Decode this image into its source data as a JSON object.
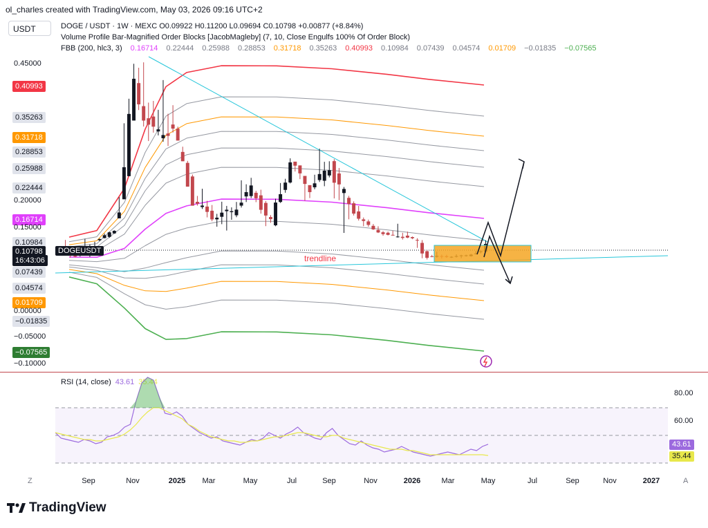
{
  "header": {
    "attribution": "ol_charles created with TradingView.com, May 03, 2026 09:16 UTC+2"
  },
  "currency_button": "USDT",
  "legend": {
    "symbol_line": "DOGE / USDT · 1W · MEXC  O0.09922  H0.11200  L0.09694  C0.10798  +0.00877 (+8.84%)",
    "indicator1": "Volume Profile Bar-Magnified Order Blocks [JacobMagleby] (7, 10, Close Engulfs 100% Of Order Block)",
    "fbb_title": "FBB (200, hlc3, 3)",
    "fbb_values": [
      {
        "text": "0.16714",
        "color": "#e040fb"
      },
      {
        "text": "0.22444",
        "color": "#787b86"
      },
      {
        "text": "0.25988",
        "color": "#787b86"
      },
      {
        "text": "0.28853",
        "color": "#787b86"
      },
      {
        "text": "0.31718",
        "color": "#ff9800"
      },
      {
        "text": "0.35263",
        "color": "#787b86"
      },
      {
        "text": "0.40993",
        "color": "#f23645"
      },
      {
        "text": "0.10984",
        "color": "#787b86"
      },
      {
        "text": "0.07439",
        "color": "#787b86"
      },
      {
        "text": "0.04574",
        "color": "#787b86"
      },
      {
        "text": "0.01709",
        "color": "#ff9800"
      },
      {
        "text": "−0.01835",
        "color": "#787b86"
      },
      {
        "text": "−0.07565",
        "color": "#4caf50"
      }
    ]
  },
  "price_tags": [
    {
      "text": "0.40993",
      "bg": "#f23645",
      "fg": "#ffffff"
    },
    {
      "text": "0.35263",
      "bg": "#e0e3eb",
      "fg": "#131722"
    },
    {
      "text": "0.31718",
      "bg": "#ff9800",
      "fg": "#ffffff"
    },
    {
      "text": "0.28853",
      "bg": "#e0e3eb",
      "fg": "#131722"
    },
    {
      "text": "0.25988",
      "bg": "#e0e3eb",
      "fg": "#131722"
    },
    {
      "text": "0.22444",
      "bg": "#e0e3eb",
      "fg": "#131722"
    },
    {
      "text": "0.16714",
      "bg": "#e040fb",
      "fg": "#ffffff"
    },
    {
      "text": "0.10984",
      "bg": "#e0e3eb",
      "fg": "#131722"
    },
    {
      "text": "0.10798",
      "bg": "#131722",
      "fg": "#ffffff"
    },
    {
      "text": "16:43:06",
      "bg": "#131722",
      "fg": "#ffffff"
    },
    {
      "text": "0.07439",
      "bg": "#e0e3eb",
      "fg": "#131722"
    },
    {
      "text": "0.04574",
      "bg": "#e0e3eb",
      "fg": "#131722"
    },
    {
      "text": "0.01709",
      "bg": "#ff9800",
      "fg": "#ffffff"
    },
    {
      "text": "−0.01835",
      "bg": "#e0e3eb",
      "fg": "#131722"
    },
    {
      "text": "−0.07565",
      "bg": "#2e7d32",
      "fg": "#ffffff"
    }
  ],
  "price_axis_labels": [
    "0.45000",
    "0.20000",
    "0.15000",
    "0.00000",
    "−0.05000",
    "−0.10000"
  ],
  "symbol_tag": "DOGEUSDT",
  "trendline_label": "trendline",
  "rsi": {
    "title": "RSI (14, close)",
    "value1": "43.61",
    "value2": "35.44",
    "axis_labels": [
      "80.00",
      "60.00"
    ],
    "tag1": "43.61",
    "tag2": "35.44"
  },
  "time_axis": [
    {
      "text": "Sep",
      "bold": false
    },
    {
      "text": "Nov",
      "bold": false
    },
    {
      "text": "2025",
      "bold": true
    },
    {
      "text": "Mar",
      "bold": false
    },
    {
      "text": "May",
      "bold": false
    },
    {
      "text": "Jul",
      "bold": false
    },
    {
      "text": "Sep",
      "bold": false
    },
    {
      "text": "Nov",
      "bold": false
    },
    {
      "text": "2026",
      "bold": true
    },
    {
      "text": "Mar",
      "bold": false
    },
    {
      "text": "May",
      "bold": false
    },
    {
      "text": "Jul",
      "bold": false
    },
    {
      "text": "Sep",
      "bold": false
    },
    {
      "text": "Nov",
      "bold": false
    },
    {
      "text": "2027",
      "bold": true
    }
  ],
  "corner_left": "Z",
  "corner_right": "A",
  "brand": "TradingView",
  "colors": {
    "up_candle": "#131722",
    "down_candle": "#c2474d",
    "trendline": "#26c6da",
    "upper_band": "#f23645",
    "middle_band": "#e040fb",
    "lower_band": "#4caf50",
    "orange_band": "#ff9800",
    "grey_band": "#9598a1",
    "rsi_line": "#9c6ade",
    "rsi_ma": "#e8e84b",
    "order_block": "#f5a623"
  },
  "chart_data": {
    "type": "candlestick",
    "title": "DOGE / USDT · 1W · MEXC",
    "timeframe": "1W",
    "last_close": 0.10798,
    "candles_approx": [
      {
        "t": "2024-08",
        "o": 0.105,
        "h": 0.112,
        "l": 0.095,
        "c": 0.098
      },
      {
        "t": "2024-09",
        "o": 0.098,
        "h": 0.118,
        "l": 0.093,
        "c": 0.108
      },
      {
        "t": "2024-10",
        "o": 0.108,
        "h": 0.145,
        "l": 0.105,
        "c": 0.14
      },
      {
        "t": "2024-11",
        "o": 0.14,
        "h": 0.48,
        "l": 0.14,
        "c": 0.4
      },
      {
        "t": "2024-12",
        "o": 0.4,
        "h": 0.482,
        "l": 0.29,
        "c": 0.32
      },
      {
        "t": "2025-01",
        "o": 0.32,
        "h": 0.43,
        "l": 0.3,
        "c": 0.33
      },
      {
        "t": "2025-02",
        "o": 0.33,
        "h": 0.34,
        "l": 0.2,
        "c": 0.2
      },
      {
        "t": "2025-03",
        "o": 0.2,
        "h": 0.23,
        "l": 0.16,
        "c": 0.17
      },
      {
        "t": "2025-04",
        "o": 0.17,
        "h": 0.2,
        "l": 0.13,
        "c": 0.18
      },
      {
        "t": "2025-05",
        "o": 0.18,
        "h": 0.26,
        "l": 0.17,
        "c": 0.22
      },
      {
        "t": "2025-06",
        "o": 0.22,
        "h": 0.23,
        "l": 0.14,
        "c": 0.16
      },
      {
        "t": "2025-07",
        "o": 0.16,
        "h": 0.29,
        "l": 0.155,
        "c": 0.27
      },
      {
        "t": "2025-08",
        "o": 0.27,
        "h": 0.26,
        "l": 0.19,
        "c": 0.22
      },
      {
        "t": "2025-09",
        "o": 0.22,
        "h": 0.305,
        "l": 0.21,
        "c": 0.26
      },
      {
        "t": "2025-10",
        "o": 0.26,
        "h": 0.27,
        "l": 0.11,
        "c": 0.19
      },
      {
        "t": "2025-11",
        "o": 0.19,
        "h": 0.2,
        "l": 0.14,
        "c": 0.15
      },
      {
        "t": "2025-12",
        "o": 0.15,
        "h": 0.16,
        "l": 0.12,
        "c": 0.125
      },
      {
        "t": "2026-01",
        "o": 0.125,
        "h": 0.16,
        "l": 0.115,
        "c": 0.12
      },
      {
        "t": "2026-02",
        "o": 0.12,
        "h": 0.125,
        "l": 0.09,
        "c": 0.098
      },
      {
        "t": "2026-03",
        "o": 0.098,
        "h": 0.105,
        "l": 0.093,
        "c": 0.097
      },
      {
        "t": "2026-04",
        "o": 0.097,
        "h": 0.102,
        "l": 0.093,
        "c": 0.099
      },
      {
        "t": "2026-05",
        "o": 0.09922,
        "h": 0.112,
        "l": 0.09694,
        "c": 0.10798
      }
    ],
    "fbb_levels": [
      0.40993,
      0.35263,
      0.31718,
      0.28853,
      0.25988,
      0.22444,
      0.16714,
      0.10984,
      0.07439,
      0.04574,
      0.01709,
      -0.01835,
      -0.07565
    ],
    "rsi": {
      "value": 43.61,
      "ma": 35.44,
      "ylim": [
        20,
        100
      ]
    },
    "annotations": [
      "trendline"
    ]
  }
}
